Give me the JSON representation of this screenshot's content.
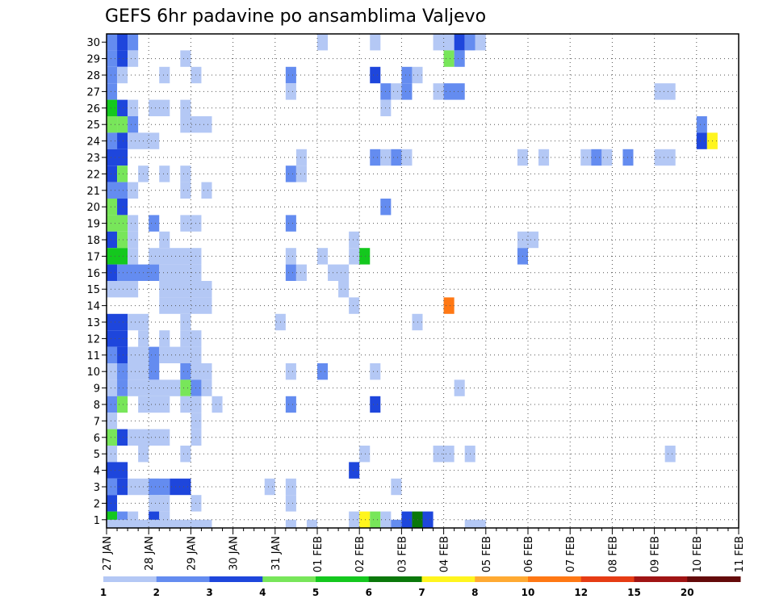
{
  "chart_data": {
    "type": "heatmap",
    "title": "GEFS 6hr padavine po ansamblima Valjevo",
    "y_categories": [
      "1",
      "2",
      "3",
      "4",
      "5",
      "6",
      "7",
      "8",
      "9",
      "10",
      "11",
      "12",
      "13",
      "14",
      "15",
      "16",
      "17",
      "18",
      "19",
      "20",
      "21",
      "22",
      "23",
      "24",
      "25",
      "26",
      "27",
      "28",
      "29",
      "30"
    ],
    "ylim": [
      0.5,
      30.5
    ],
    "x_tick_labels": [
      "27 JAN",
      "28 JAN",
      "29 JAN",
      "30 JAN",
      "31 JAN",
      "01 FEB",
      "02 FEB",
      "03 FEB",
      "04 FEB",
      "05 FEB",
      "06 FEB",
      "07 FEB",
      "08 FEB",
      "09 FEB",
      "10 FEB",
      "11 FEB"
    ],
    "x_unit": "6-hour steps from 27 JAN 00Z",
    "xlim": [
      0,
      60
    ],
    "grid": true,
    "legend": {
      "placement": "bottom",
      "thresholds": [
        "1",
        "2",
        "3",
        "4",
        "5",
        "6",
        "7",
        "8",
        "10",
        "12",
        "15",
        "20"
      ],
      "colors": [
        "#b4c8f5",
        "#648cf0",
        "#1e46dc",
        "#78e65a",
        "#14c81e",
        "#0a780a",
        "#fff51e",
        "#ffaa32",
        "#ff7814",
        "#e63c14",
        "#a01414",
        "#640a0a"
      ]
    },
    "cells": [
      [
        30,
        0,
        1,
        2
      ],
      [
        30,
        1,
        1,
        3
      ],
      [
        30,
        2,
        1,
        2
      ],
      [
        30,
        20,
        1,
        1
      ],
      [
        30,
        25,
        1,
        1
      ],
      [
        30,
        31,
        2,
        1
      ],
      [
        30,
        33,
        1,
        3
      ],
      [
        30,
        34,
        1,
        2
      ],
      [
        30,
        35,
        1,
        1
      ],
      [
        29,
        0,
        1,
        2
      ],
      [
        29,
        1,
        1,
        3
      ],
      [
        29,
        2,
        1,
        1
      ],
      [
        29,
        7,
        1,
        1
      ],
      [
        29,
        32,
        1,
        4
      ],
      [
        29,
        33,
        1,
        2
      ],
      [
        28,
        0,
        1,
        2
      ],
      [
        28,
        1,
        1,
        1
      ],
      [
        28,
        5,
        1,
        1
      ],
      [
        28,
        8,
        1,
        1
      ],
      [
        28,
        17,
        1,
        2
      ],
      [
        28,
        25,
        1,
        3
      ],
      [
        28,
        28,
        1,
        2
      ],
      [
        28,
        29,
        1,
        1
      ],
      [
        27,
        0,
        1,
        2
      ],
      [
        27,
        17,
        1,
        1
      ],
      [
        27,
        26,
        1,
        2
      ],
      [
        27,
        27,
        1,
        1
      ],
      [
        27,
        28,
        1,
        2
      ],
      [
        27,
        31,
        1,
        1
      ],
      [
        27,
        32,
        2,
        2
      ],
      [
        27,
        52,
        2,
        1
      ],
      [
        26,
        0,
        1,
        5
      ],
      [
        26,
        1,
        1,
        3
      ],
      [
        26,
        2,
        1,
        1
      ],
      [
        26,
        4,
        2,
        1
      ],
      [
        26,
        7,
        1,
        1
      ],
      [
        26,
        26,
        1,
        1
      ],
      [
        25,
        0,
        1,
        4
      ],
      [
        25,
        1,
        1,
        4
      ],
      [
        25,
        2,
        1,
        2
      ],
      [
        25,
        7,
        3,
        1
      ],
      [
        25,
        56,
        1,
        2
      ],
      [
        24,
        0,
        1,
        2
      ],
      [
        24,
        1,
        1,
        3
      ],
      [
        24,
        2,
        3,
        1
      ],
      [
        24,
        56,
        1,
        3
      ],
      [
        24,
        57,
        1,
        7
      ],
      [
        23,
        0,
        2,
        3
      ],
      [
        23,
        18,
        1,
        1
      ],
      [
        23,
        25,
        1,
        2
      ],
      [
        23,
        26,
        1,
        1
      ],
      [
        23,
        27,
        1,
        2
      ],
      [
        23,
        28,
        1,
        1
      ],
      [
        23,
        39,
        1,
        1
      ],
      [
        23,
        41,
        1,
        1
      ],
      [
        23,
        45,
        1,
        1
      ],
      [
        23,
        46,
        1,
        2
      ],
      [
        23,
        47,
        1,
        1
      ],
      [
        23,
        49,
        1,
        2
      ],
      [
        23,
        52,
        2,
        1
      ],
      [
        22,
        0,
        1,
        3
      ],
      [
        22,
        1,
        1,
        4
      ],
      [
        22,
        3,
        1,
        1
      ],
      [
        22,
        5,
        1,
        1
      ],
      [
        22,
        7,
        1,
        1
      ],
      [
        22,
        17,
        1,
        2
      ],
      [
        22,
        18,
        1,
        1
      ],
      [
        21,
        0,
        2,
        2
      ],
      [
        21,
        2,
        1,
        1
      ],
      [
        21,
        7,
        1,
        1
      ],
      [
        21,
        9,
        1,
        1
      ],
      [
        20,
        0,
        1,
        4
      ],
      [
        20,
        1,
        1,
        3
      ],
      [
        20,
        26,
        1,
        2
      ],
      [
        19,
        0,
        2,
        4
      ],
      [
        19,
        2,
        1,
        1
      ],
      [
        19,
        4,
        1,
        2
      ],
      [
        19,
        7,
        2,
        1
      ],
      [
        19,
        17,
        1,
        2
      ],
      [
        18,
        0,
        1,
        3
      ],
      [
        18,
        1,
        1,
        4
      ],
      [
        18,
        2,
        1,
        1
      ],
      [
        18,
        5,
        1,
        1
      ],
      [
        18,
        23,
        1,
        1
      ],
      [
        18,
        39,
        2,
        1
      ],
      [
        17,
        0,
        2,
        5
      ],
      [
        17,
        2,
        1,
        1
      ],
      [
        17,
        4,
        5,
        1
      ],
      [
        17,
        17,
        1,
        1
      ],
      [
        17,
        20,
        1,
        1
      ],
      [
        17,
        23,
        1,
        1
      ],
      [
        17,
        24,
        1,
        5
      ],
      [
        17,
        39,
        1,
        2
      ],
      [
        16,
        0,
        1,
        3
      ],
      [
        16,
        1,
        4,
        2
      ],
      [
        16,
        5,
        4,
        1
      ],
      [
        16,
        17,
        1,
        2
      ],
      [
        16,
        18,
        1,
        1
      ],
      [
        16,
        21,
        2,
        1
      ],
      [
        15,
        0,
        3,
        1
      ],
      [
        15,
        5,
        5,
        1
      ],
      [
        15,
        22,
        1,
        1
      ],
      [
        14,
        5,
        5,
        1
      ],
      [
        14,
        23,
        1,
        1
      ],
      [
        14,
        32,
        1,
        9
      ],
      [
        13,
        0,
        2,
        3
      ],
      [
        13,
        2,
        2,
        1
      ],
      [
        13,
        7,
        1,
        1
      ],
      [
        13,
        16,
        1,
        1
      ],
      [
        13,
        29,
        1,
        1
      ],
      [
        12,
        0,
        2,
        3
      ],
      [
        12,
        3,
        1,
        1
      ],
      [
        12,
        5,
        1,
        1
      ],
      [
        12,
        7,
        2,
        1
      ],
      [
        11,
        0,
        1,
        2
      ],
      [
        11,
        1,
        1,
        3
      ],
      [
        11,
        2,
        2,
        1
      ],
      [
        11,
        4,
        1,
        2
      ],
      [
        11,
        5,
        4,
        1
      ],
      [
        10,
        0,
        4,
        1
      ],
      [
        10,
        1,
        1,
        2
      ],
      [
        10,
        4,
        1,
        2
      ],
      [
        10,
        7,
        1,
        2
      ],
      [
        10,
        8,
        2,
        1
      ],
      [
        10,
        17,
        1,
        1
      ],
      [
        10,
        20,
        1,
        2
      ],
      [
        10,
        25,
        1,
        1
      ],
      [
        9,
        0,
        1,
        1
      ],
      [
        9,
        1,
        1,
        2
      ],
      [
        9,
        2,
        5,
        1
      ],
      [
        9,
        7,
        1,
        4
      ],
      [
        9,
        8,
        1,
        2
      ],
      [
        9,
        9,
        1,
        1
      ],
      [
        9,
        33,
        1,
        1
      ],
      [
        8,
        0,
        1,
        2
      ],
      [
        8,
        1,
        1,
        4
      ],
      [
        8,
        3,
        3,
        1
      ],
      [
        8,
        7,
        2,
        1
      ],
      [
        8,
        10,
        1,
        1
      ],
      [
        8,
        17,
        1,
        2
      ],
      [
        8,
        25,
        1,
        3
      ],
      [
        7,
        0,
        1,
        1
      ],
      [
        7,
        8,
        1,
        1
      ],
      [
        6,
        0,
        1,
        4
      ],
      [
        6,
        1,
        1,
        3
      ],
      [
        6,
        2,
        4,
        1
      ],
      [
        6,
        8,
        1,
        1
      ],
      [
        5,
        0,
        1,
        1
      ],
      [
        5,
        3,
        1,
        1
      ],
      [
        5,
        7,
        1,
        1
      ],
      [
        5,
        24,
        1,
        1
      ],
      [
        5,
        31,
        2,
        1
      ],
      [
        5,
        34,
        1,
        1
      ],
      [
        5,
        53,
        1,
        1
      ],
      [
        4,
        0,
        2,
        3
      ],
      [
        4,
        23,
        1,
        3
      ],
      [
        3,
        0,
        1,
        2
      ],
      [
        3,
        1,
        1,
        3
      ],
      [
        3,
        2,
        3,
        1
      ],
      [
        3,
        4,
        2,
        2
      ],
      [
        3,
        6,
        2,
        3
      ],
      [
        3,
        15,
        1,
        1
      ],
      [
        3,
        17,
        1,
        1
      ],
      [
        3,
        27,
        1,
        1
      ],
      [
        2,
        0,
        1,
        3
      ],
      [
        2,
        4,
        2,
        1
      ],
      [
        2,
        8,
        1,
        1
      ],
      [
        2,
        17,
        1,
        1
      ],
      [
        1,
        0,
        1,
        5
      ],
      [
        1,
        1,
        1,
        2
      ],
      [
        1,
        2,
        1,
        1
      ],
      [
        1,
        4,
        1,
        3
      ],
      [
        1,
        5,
        1,
        1
      ],
      [
        1,
        23,
        1,
        1
      ],
      [
        1,
        24,
        1,
        7
      ],
      [
        1,
        25,
        1,
        4
      ],
      [
        1,
        26,
        1,
        1
      ],
      [
        1,
        28,
        1,
        3
      ],
      [
        1,
        29,
        1,
        6
      ],
      [
        1,
        30,
        1,
        3
      ],
      [
        0.5,
        0,
        10,
        1
      ],
      [
        0.5,
        17,
        1,
        1
      ],
      [
        0.5,
        19,
        1,
        1
      ],
      [
        0.5,
        27,
        1,
        2
      ],
      [
        0.5,
        34,
        2,
        1
      ]
    ]
  }
}
